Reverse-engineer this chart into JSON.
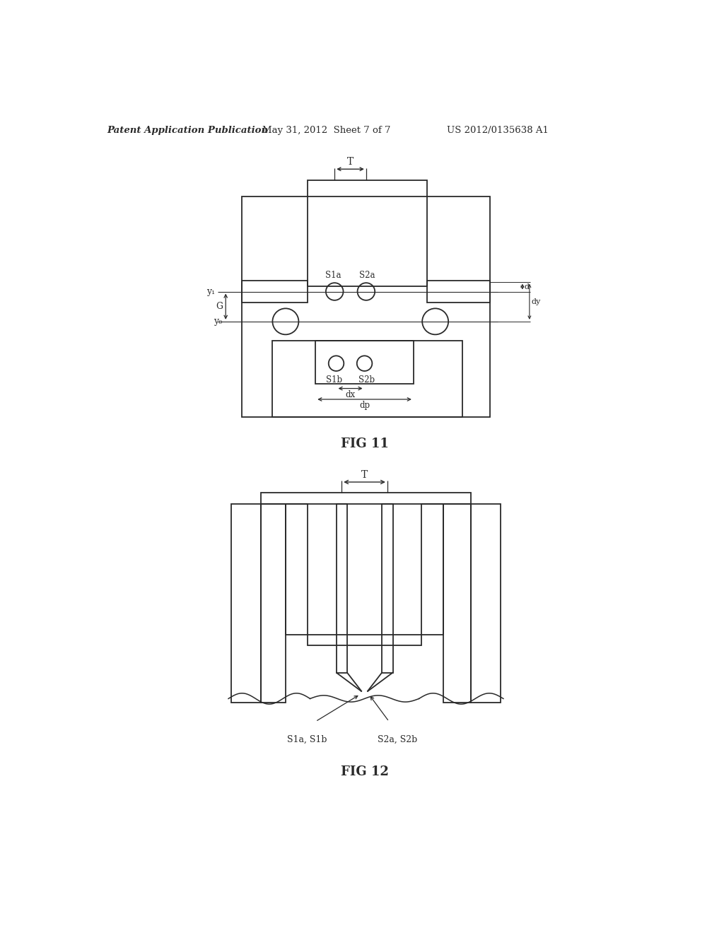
{
  "bg_color": "#ffffff",
  "line_color": "#2a2a2a",
  "header_left": "Patent Application Publication",
  "header_mid": "May 31, 2012  Sheet 7 of 7",
  "header_right": "US 2012/0135638 A1",
  "fig11_label": "FIG 11",
  "fig12_label": "FIG 12",
  "lw": 1.3
}
